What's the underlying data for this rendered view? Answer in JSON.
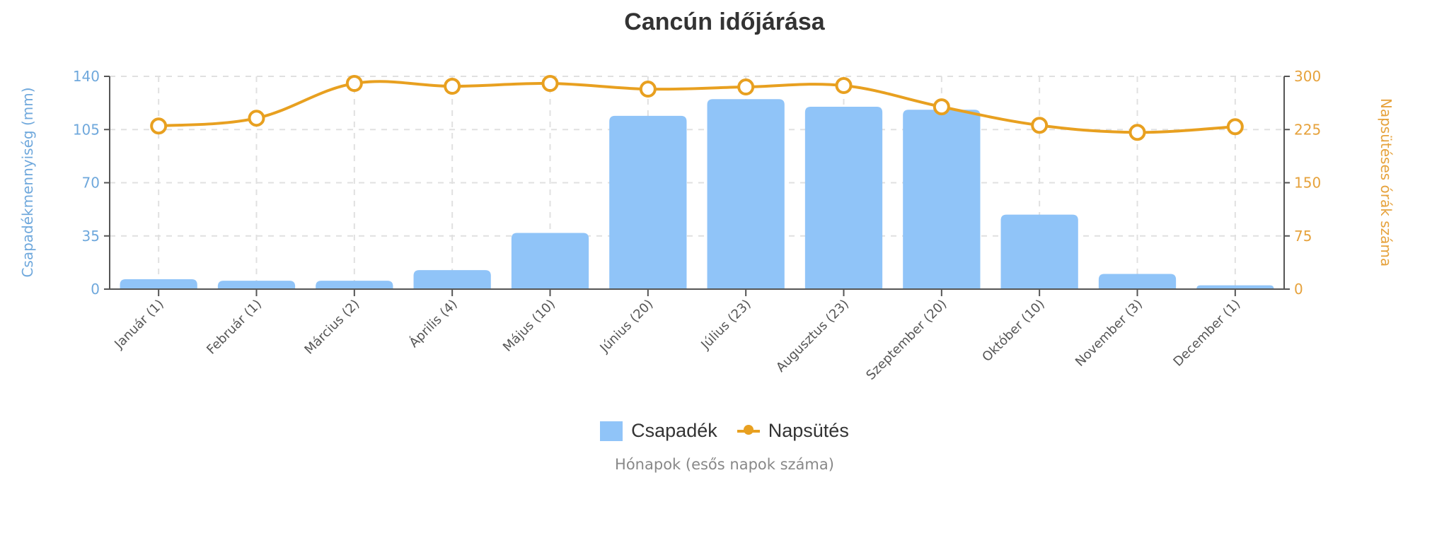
{
  "title": "Cancún időjárása",
  "legend": {
    "precip_label": "Csapadék",
    "sun_label": "Napsütés"
  },
  "x_axis_title": "Hónapok (esős napok száma)",
  "left_axis_title": "Csapadékmennyiség (mm)",
  "right_axis_title": "Napsütéses órák száma",
  "colors": {
    "bar": "#90c4f8",
    "line": "#e8a020",
    "left_axis": "#6fa8dc",
    "right_axis": "#e6a23c",
    "grid": "#e0e0e0",
    "axis": "#555555"
  },
  "chart_data": {
    "type": "bar+line",
    "title": "Cancún időjárása",
    "xlabel": "Hónapok (esős napok száma)",
    "categories": [
      "Január (1)",
      "Február (1)",
      "Március (2)",
      "Április (4)",
      "Május (10)",
      "Június (20)",
      "Július (23)",
      "Augusztus (23)",
      "Szeptember (20)",
      "Október (10)",
      "November (3)",
      "December (1)"
    ],
    "series": [
      {
        "name": "Csapadék",
        "type": "bar",
        "axis": "left",
        "values": [
          6.5,
          5.5,
          5.5,
          12.5,
          37,
          114,
          125,
          120,
          118,
          49,
          10,
          2.5
        ]
      },
      {
        "name": "Napsütés",
        "type": "line",
        "axis": "right",
        "values": [
          230,
          241,
          290,
          286,
          290,
          282,
          285,
          287,
          257,
          231,
          221,
          229
        ]
      }
    ],
    "left_axis": {
      "label": "Csapadékmennyiség (mm)",
      "ylim": [
        0,
        140
      ],
      "ticks": [
        0,
        35,
        70,
        105,
        140
      ]
    },
    "right_axis": {
      "label": "Napsütéses órák száma",
      "ylim": [
        0,
        300
      ],
      "ticks": [
        0,
        75,
        150,
        225,
        300
      ]
    },
    "grid": true,
    "legend_position": "bottom"
  }
}
